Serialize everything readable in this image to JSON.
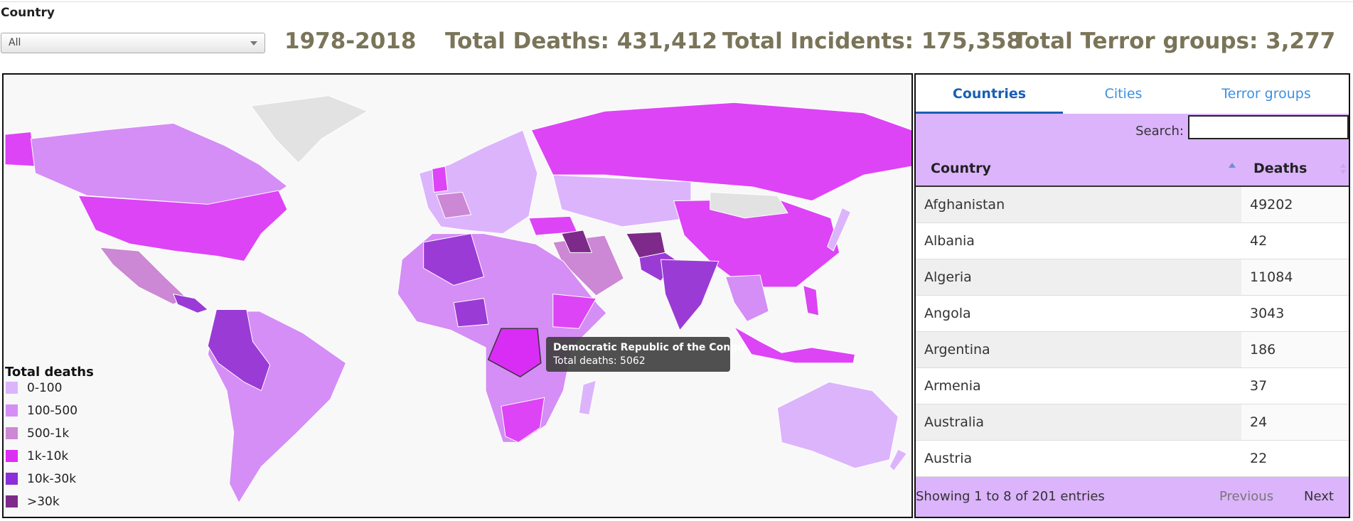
{
  "filter": {
    "label": "Country",
    "selected": "All"
  },
  "summary": {
    "period": "1978-2018",
    "total_deaths": "Total Deaths: 431,412",
    "total_incidents": "Total Incidents: 175,358",
    "total_groups": "Total Terror groups: 3,277"
  },
  "map": {
    "legend": {
      "title": "Total deaths",
      "items": [
        {
          "label": "0-100",
          "color": "#dcb4fc"
        },
        {
          "label": "100-500",
          "color": "#d58ef5"
        },
        {
          "label": "500-1k",
          "color": "#cc88d4"
        },
        {
          "label": "1k-10k",
          "color": "#dd2ef5"
        },
        {
          "label": "10k-30k",
          "color": "#8e2ed6"
        },
        {
          "label": ">30k",
          "color": "#7d2a8a"
        }
      ]
    },
    "tooltip": {
      "title": "Democratic Republic of the Congo",
      "text": "Total deaths: 5062"
    }
  },
  "table": {
    "tabs": [
      "Countries",
      "Cities",
      "Terror groups"
    ],
    "active_tab": 0,
    "search_label": "Search:",
    "columns": [
      "Country",
      "Deaths"
    ],
    "rows": [
      [
        "Afghanistan",
        49202
      ],
      [
        "Albania",
        42
      ],
      [
        "Algeria",
        11084
      ],
      [
        "Angola",
        3043
      ],
      [
        "Argentina",
        186
      ],
      [
        "Armenia",
        37
      ],
      [
        "Australia",
        24
      ],
      [
        "Austria",
        22
      ]
    ],
    "info": "Showing 1 to 8 of 201 entries",
    "prev": "Previous",
    "next": "Next"
  }
}
